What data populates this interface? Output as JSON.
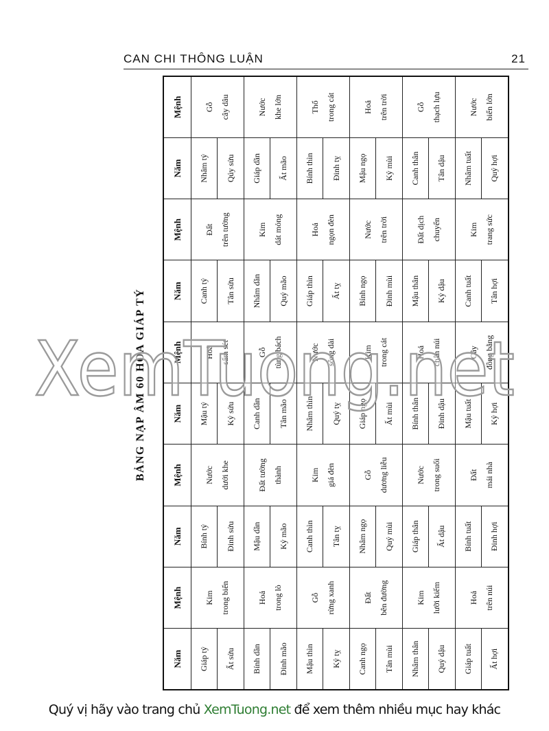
{
  "header": {
    "title": "CAN CHI THÔNG LUẬN",
    "page": "21"
  },
  "table": {
    "title": "BẢNG NẠP ÂM 60 HOA GIÁP TÝ",
    "headers": [
      "Năm",
      "Mệnh",
      "Năm",
      "Mệnh",
      "Năm",
      "Mệnh",
      "Năm",
      "Mệnh",
      "Năm",
      "Mệnh"
    ],
    "groups": [
      [
        {
          "years": [
            "Giáp tý",
            "Ất sửu"
          ],
          "menh": [
            "Kim",
            "trong biển"
          ]
        },
        {
          "years": [
            "Bính tý",
            "Đinh sửu"
          ],
          "menh": [
            "Nước",
            "dưới khe"
          ]
        },
        {
          "years": [
            "Mậu tý",
            "Kỷ sửu"
          ],
          "menh": [
            "Hoả",
            "sấm sét"
          ]
        },
        {
          "years": [
            "Canh tý",
            "Tân sửu"
          ],
          "menh": [
            "Đất",
            "trên tường"
          ]
        },
        {
          "years": [
            "Nhâm tý",
            "Qúy sửu"
          ],
          "menh": [
            "Gỗ",
            "cây dâu"
          ]
        }
      ],
      [
        {
          "years": [
            "Bính dần",
            "Đinh mão"
          ],
          "menh": [
            "Hoả",
            "trong lò"
          ]
        },
        {
          "years": [
            "Mậu dần",
            "Kỷ mão"
          ],
          "menh": [
            "Đất tường",
            "thành"
          ]
        },
        {
          "years": [
            "Canh dần",
            "Tân mão"
          ],
          "menh": [
            "Gỗ",
            "tùng bách"
          ]
        },
        {
          "years": [
            "Nhâm dần",
            "Quý mão"
          ],
          "menh": [
            "Kim",
            "dát mỏng"
          ]
        },
        {
          "years": [
            "Giáp dần",
            "Ất mão"
          ],
          "menh": [
            "Nước",
            "khe lớn"
          ]
        }
      ],
      [
        {
          "years": [
            "Mậu thìn",
            "Kỷ tỵ"
          ],
          "menh": [
            "Gỗ",
            "rừng xanh"
          ]
        },
        {
          "years": [
            "Canh thìn",
            "Tân tỵ"
          ],
          "menh": [
            "Kim",
            "giá đèn"
          ]
        },
        {
          "years": [
            "Nhâm thìn",
            "Quý tỵ"
          ],
          "menh": [
            "Nước",
            "sông dài"
          ]
        },
        {
          "years": [
            "Giáp thìn",
            "Ất tỵ"
          ],
          "menh": [
            "Hoả",
            "ngọn đèn"
          ]
        },
        {
          "years": [
            "Bính thìn",
            "Đinh tỵ"
          ],
          "menh": [
            "Thổ",
            "trong cát"
          ]
        }
      ],
      [
        {
          "years": [
            "Canh ngọ",
            "Tân mùi"
          ],
          "menh": [
            "Đất",
            "bên đường"
          ]
        },
        {
          "years": [
            "Nhâm ngọ",
            "Quý mùi"
          ],
          "menh": [
            "Gỗ",
            "dương liễu"
          ]
        },
        {
          "years": [
            "Giáp ngọ",
            "Ất mùi"
          ],
          "menh": [
            "Kim",
            "trong cát"
          ]
        },
        {
          "years": [
            "Bính ngọ",
            "Đinh mùi"
          ],
          "menh": [
            "Nước",
            "trên trời"
          ]
        },
        {
          "years": [
            "Mậu ngọ",
            "Kỷ mùi"
          ],
          "menh": [
            "Hoả",
            "trên trời"
          ]
        }
      ],
      [
        {
          "years": [
            "Nhâm thân",
            "Quý dậu"
          ],
          "menh": [
            "Kim",
            "lưỡi kiếm"
          ]
        },
        {
          "years": [
            "Giáp thân",
            "Ất dậu"
          ],
          "menh": [
            "Nước",
            "trong suối"
          ]
        },
        {
          "years": [
            "Bính thân",
            "Đinh dậu"
          ],
          "menh": [
            "Hoả",
            "chân núi"
          ]
        },
        {
          "years": [
            "Mậu thân",
            "Kỷ dậu"
          ],
          "menh": [
            "Đất dịch",
            "chuyển"
          ]
        },
        {
          "years": [
            "Canh thân",
            "Tân dậu"
          ],
          "menh": [
            "Gỗ",
            "thạch lựu"
          ]
        }
      ],
      [
        {
          "years": [
            "Giáp tuất",
            "Ất hợi"
          ],
          "menh": [
            "Hoả",
            "trên núi"
          ]
        },
        {
          "years": [
            "Bính tuất",
            "Đinh hợi"
          ],
          "menh": [
            "Đất",
            "mái nhà"
          ]
        },
        {
          "years": [
            "Mậu tuất",
            "Kỷ hợi"
          ],
          "menh": [
            "Cây",
            "đồng bằng"
          ]
        },
        {
          "years": [
            "Canh tuất",
            "Tân hợi"
          ],
          "menh": [
            "Kim",
            "trang sức"
          ]
        },
        {
          "years": [
            "Nhâm tuất",
            "Quý hợi"
          ],
          "menh": [
            "Nước",
            "biển lớn"
          ]
        }
      ]
    ]
  },
  "watermark": "XemTuong.net",
  "footer": {
    "before": "Quý vị hãy vào trang chủ ",
    "link": "XemTuong.net",
    "after": " để xem thêm nhiều mục hay khác"
  }
}
